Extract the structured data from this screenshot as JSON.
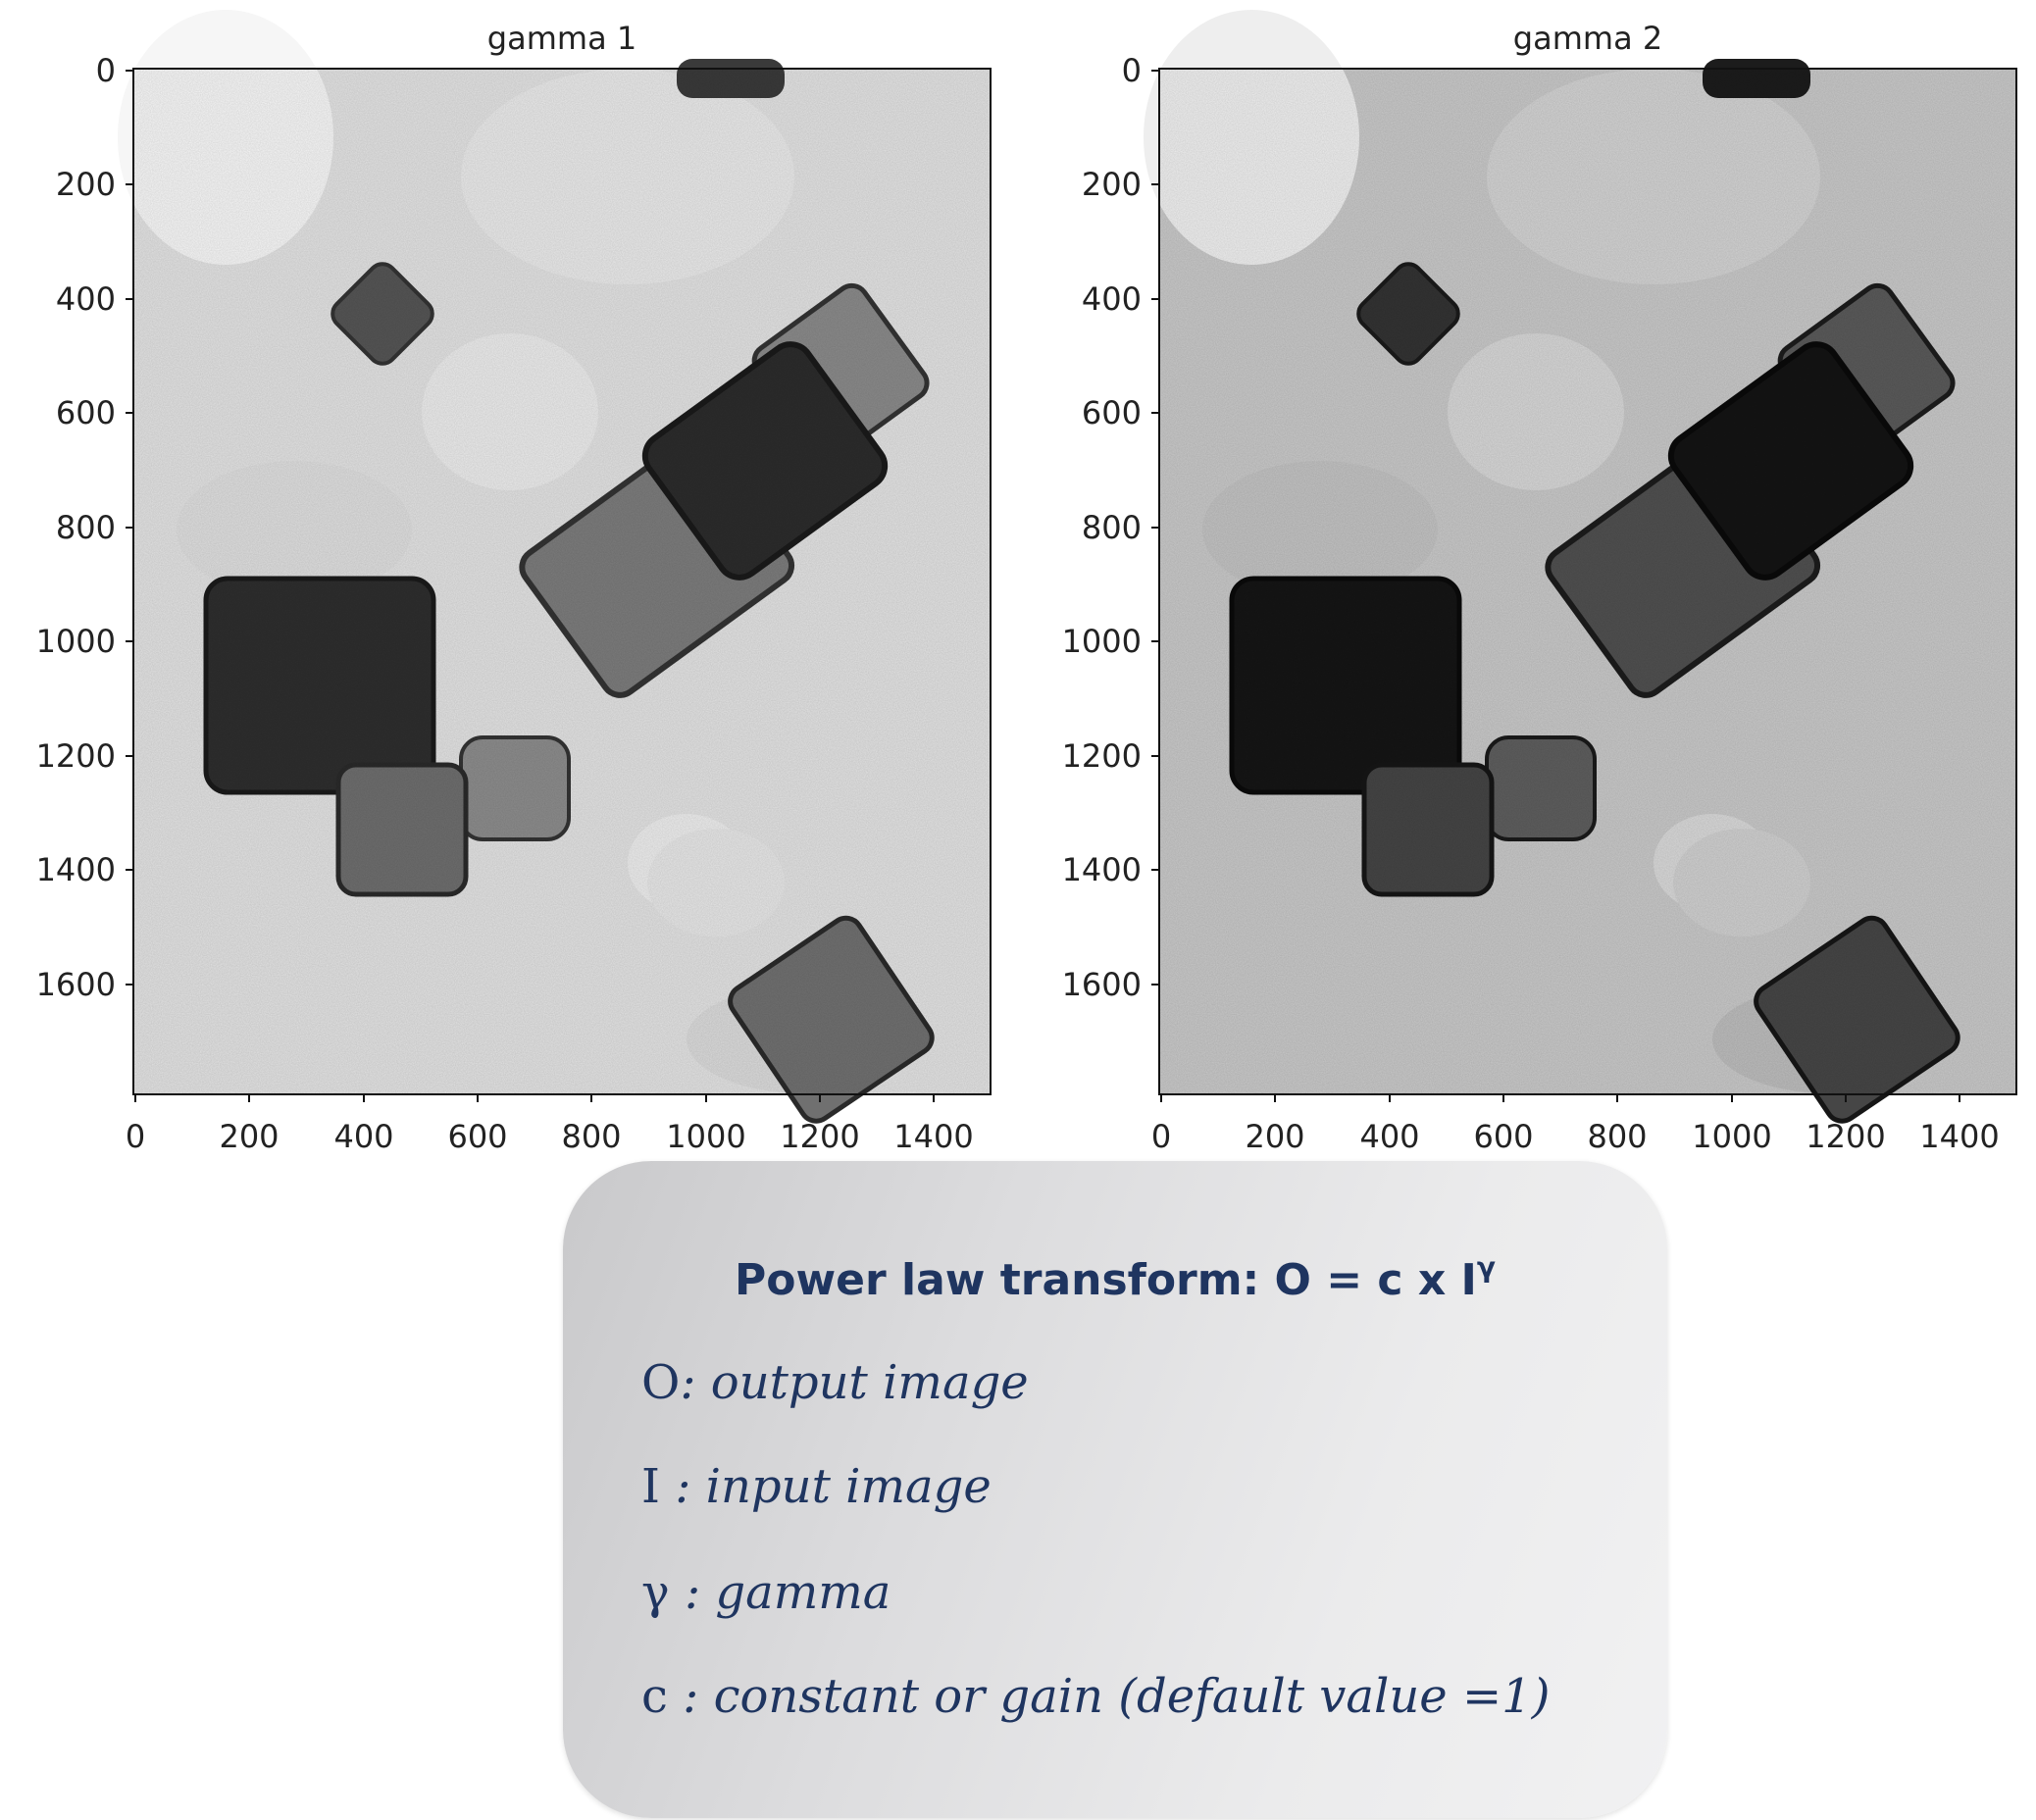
{
  "plots": [
    {
      "title": "gamma 1",
      "gamma": 1,
      "x_ticks": [
        "0",
        "200",
        "400",
        "600",
        "800",
        "1000",
        "1200",
        "1400"
      ],
      "y_ticks": [
        "0",
        "200",
        "400",
        "600",
        "800",
        "1000",
        "1200",
        "1400",
        "1600"
      ]
    },
    {
      "title": "gamma 2",
      "gamma": 2,
      "x_ticks": [
        "0",
        "200",
        "400",
        "600",
        "800",
        "1000",
        "1200",
        "1400"
      ],
      "y_ticks": [
        "0",
        "200",
        "400",
        "600",
        "800",
        "1000",
        "1200",
        "1400",
        "1600"
      ]
    }
  ],
  "formula": {
    "title": "Power law transform: O = c x I",
    "exponent": "γ",
    "definitions": [
      {
        "symbol": "O",
        "text": ": output image"
      },
      {
        "symbol": "I",
        "text": " : input image"
      },
      {
        "symbol": "γ",
        "text": " : gamma"
      },
      {
        "symbol": "c",
        "text": " : constant or gain (default value =1)"
      }
    ]
  },
  "colors": {
    "title_text": "#1f3560",
    "axis": "#111111"
  }
}
